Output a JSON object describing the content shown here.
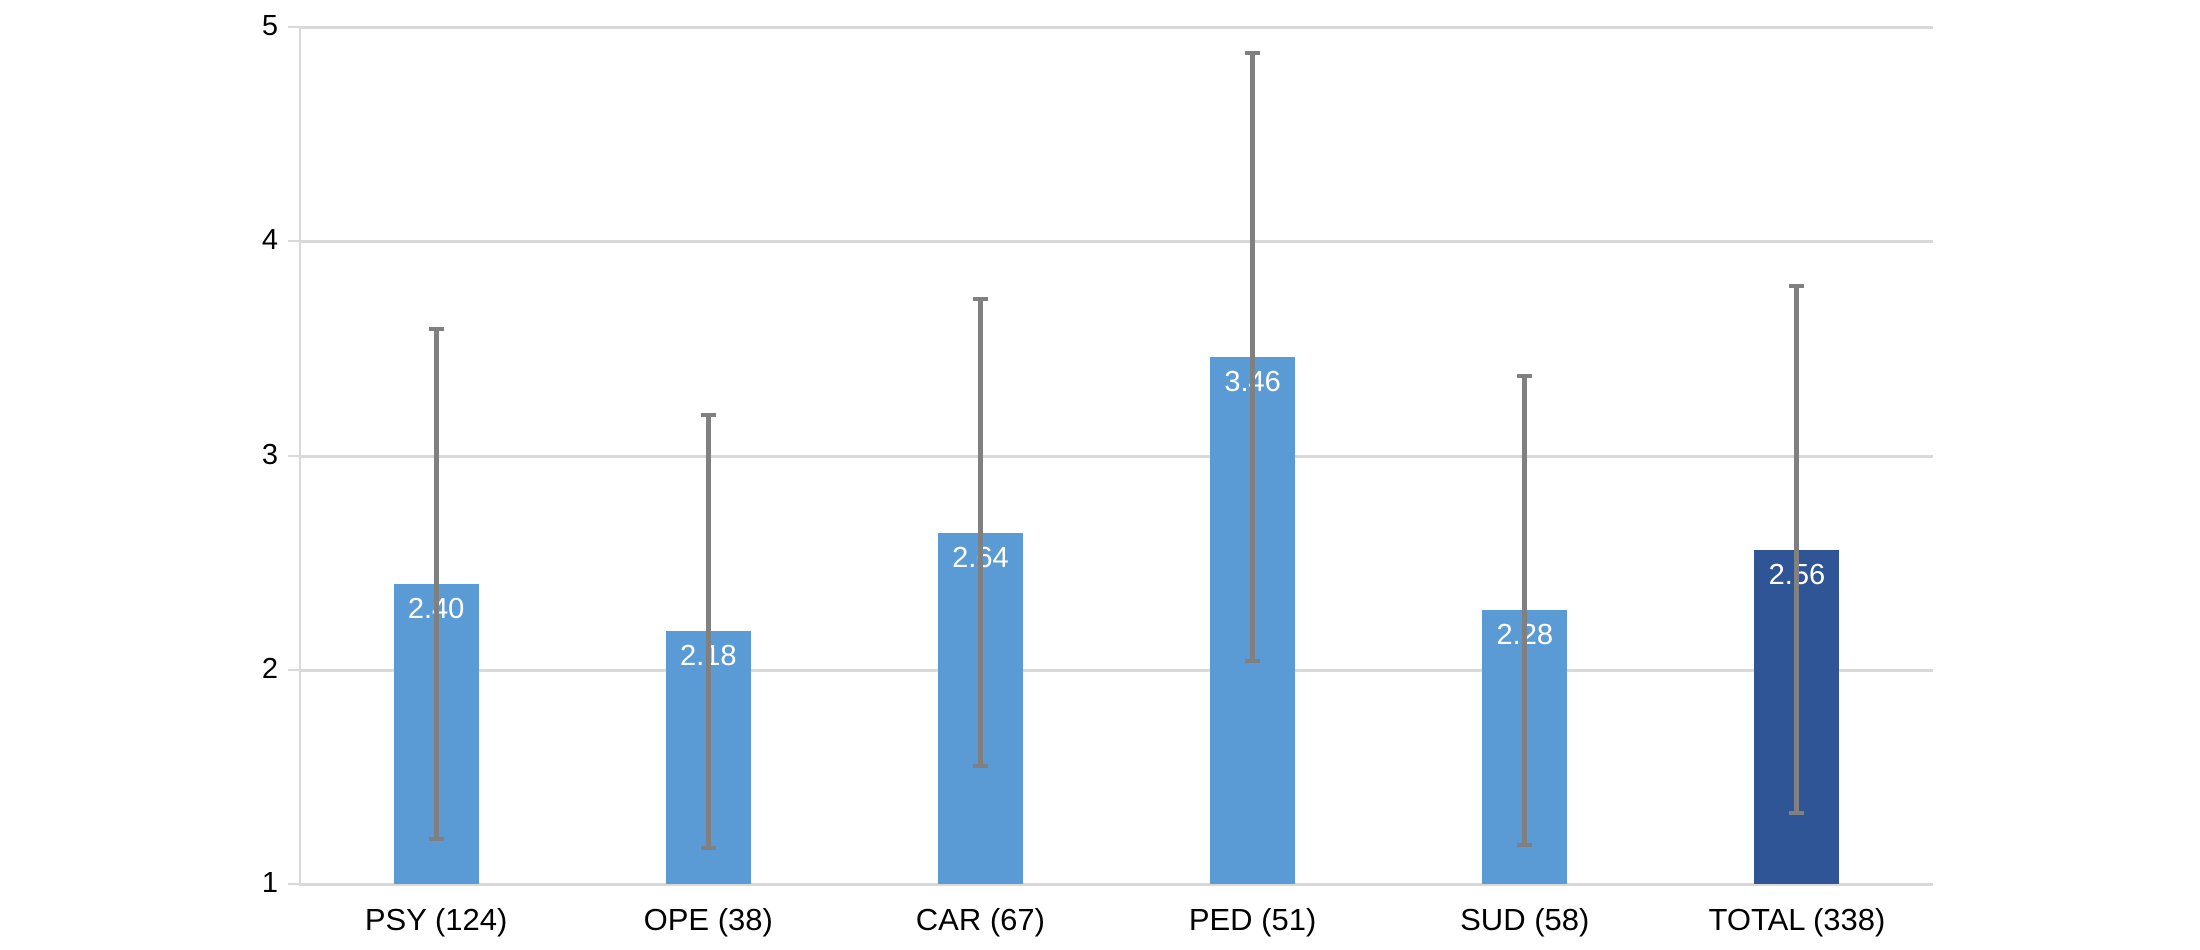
{
  "chart_data": {
    "type": "bar",
    "title": "",
    "xlabel": "",
    "ylabel": "",
    "categories": [
      "PSY (124)",
      "OPE (38)",
      "CAR (67)",
      "PED (51)",
      "SUD (58)",
      "TOTAL (338)"
    ],
    "values": [
      2.4,
      2.18,
      2.64,
      3.46,
      2.28,
      2.56
    ],
    "value_labels": [
      "2.40",
      "2.18",
      "2.64",
      "3.46",
      "2.28",
      "2.56"
    ],
    "error_low": [
      1.21,
      1.17,
      1.55,
      2.04,
      1.18,
      1.33
    ],
    "error_high": [
      3.59,
      3.19,
      3.73,
      4.88,
      3.37,
      3.79
    ],
    "bar_colors": [
      "#5B9BD5",
      "#5B9BD5",
      "#5B9BD5",
      "#5B9BD5",
      "#5B9BD5",
      "#2F5597"
    ],
    "ylim": [
      1,
      5
    ],
    "yticks": [
      1,
      2,
      3,
      4,
      5
    ],
    "grid": "horizontal",
    "legend": "none",
    "colors": {
      "bar_light": "#5B9BD5",
      "bar_dark": "#2F5597",
      "error_bar": "#808080",
      "gridline": "#D9D9D9",
      "axis_line": "#D9D9D9",
      "value_label_text": "#FFFFFF",
      "axis_text": "#000000",
      "background": "#FFFFFF"
    }
  }
}
